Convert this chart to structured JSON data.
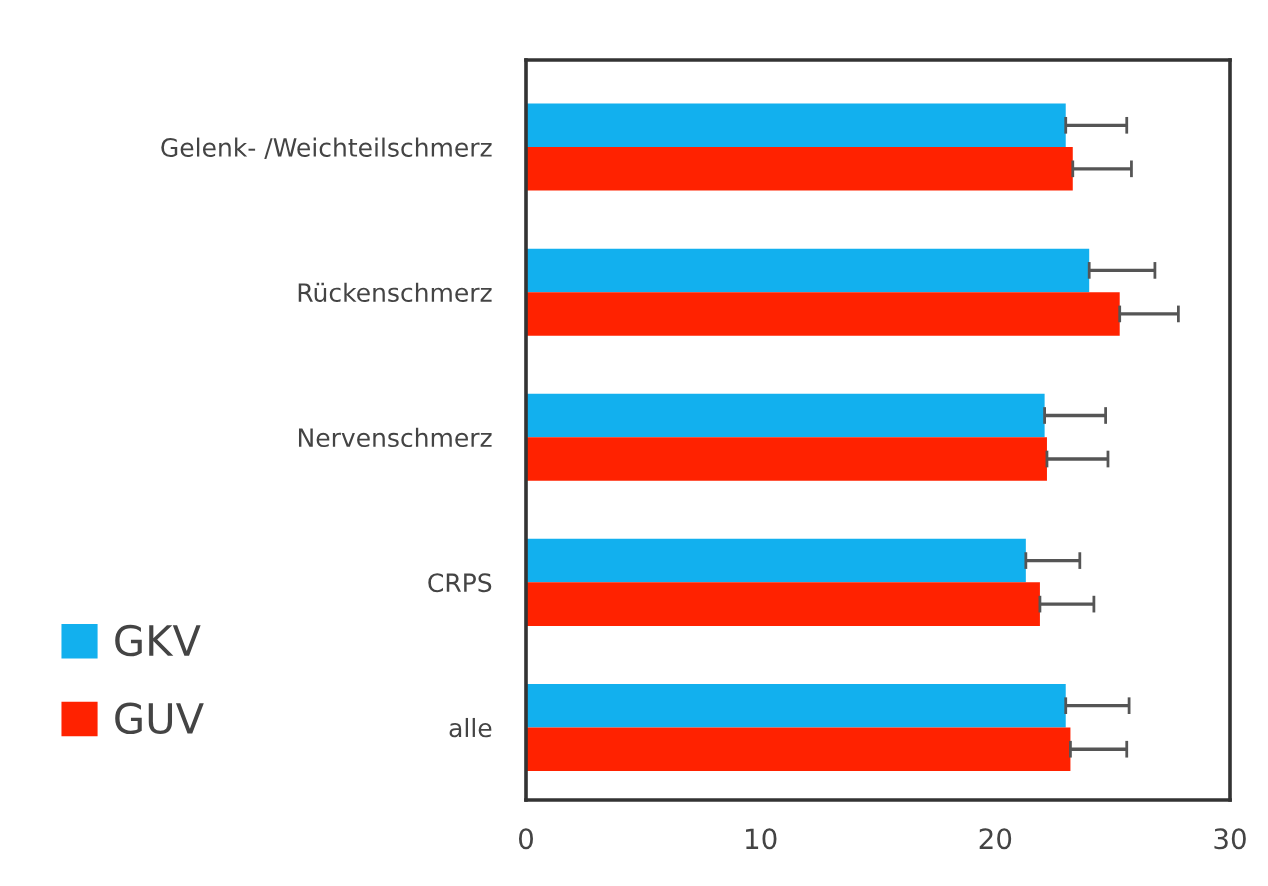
{
  "chart_data": {
    "type": "bar",
    "orientation": "horizontal",
    "categories": [
      "Gelenk- /Weichteilschmerz",
      "Rückenschmerz",
      "Nervenschmerz",
      "CRPS",
      "alle"
    ],
    "series": [
      {
        "name": "GKV",
        "color": "#12b0ee",
        "values": [
          23.0,
          24.0,
          22.1,
          21.3,
          23.0
        ],
        "errors": [
          2.6,
          2.8,
          2.6,
          2.3,
          2.7
        ]
      },
      {
        "name": "GUV",
        "color": "#ff2200",
        "values": [
          23.3,
          25.3,
          22.2,
          21.9,
          23.2
        ],
        "errors": [
          2.5,
          2.5,
          2.6,
          2.3,
          2.4
        ]
      }
    ],
    "xlim": [
      0,
      30
    ],
    "xticks": [
      0,
      10,
      20,
      30
    ],
    "grid": false,
    "legend": "left"
  }
}
